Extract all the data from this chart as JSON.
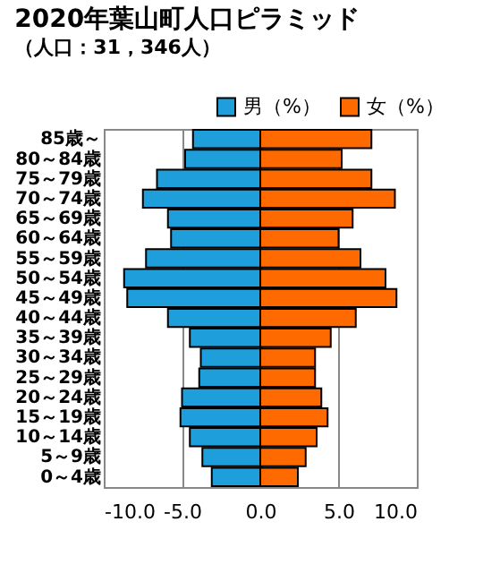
{
  "chart_data": {
    "type": "bar",
    "orientation": "horizontal",
    "title": "2020年葉山町人口ピラミッド",
    "subtitle": "（人口：31，346人）",
    "categories": [
      "85歳～",
      "80～84歳",
      "75～79歳",
      "70～74歳",
      "65～69歳",
      "60～64歳",
      "55～59歳",
      "50～54歳",
      "45～49歳",
      "40～44歳",
      "35～39歳",
      "30～34歳",
      "25～29歳",
      "20～24歳",
      "15～19歳",
      "10～14歳",
      "5～9歳",
      "0～4歳"
    ],
    "series": [
      {
        "name": "男（%）",
        "color": "#1e9fdc",
        "values": [
          -4.3,
          -4.8,
          -6.6,
          -7.5,
          -5.9,
          -5.7,
          -7.3,
          -8.7,
          -8.5,
          -5.9,
          -4.5,
          -3.8,
          -3.9,
          -5.0,
          -5.1,
          -4.5,
          -3.7,
          -3.1
        ]
      },
      {
        "name": "女（%）",
        "color": "#ff6a00",
        "values": [
          7.1,
          5.2,
          7.1,
          8.6,
          5.9,
          5.0,
          6.4,
          8.0,
          8.7,
          6.1,
          4.5,
          3.5,
          3.5,
          3.9,
          4.3,
          3.6,
          2.9,
          2.4
        ]
      }
    ],
    "xlim": [
      -10,
      10
    ],
    "xticks": [
      {
        "value": -10,
        "label": "-10.0"
      },
      {
        "value": -5,
        "label": "-5.0"
      },
      {
        "value": 0,
        "label": "0.0"
      },
      {
        "value": 5,
        "label": "5.0"
      },
      {
        "value": 10,
        "label": "10.0"
      }
    ],
    "stacked": true,
    "grid": "x",
    "legend": "top right"
  }
}
